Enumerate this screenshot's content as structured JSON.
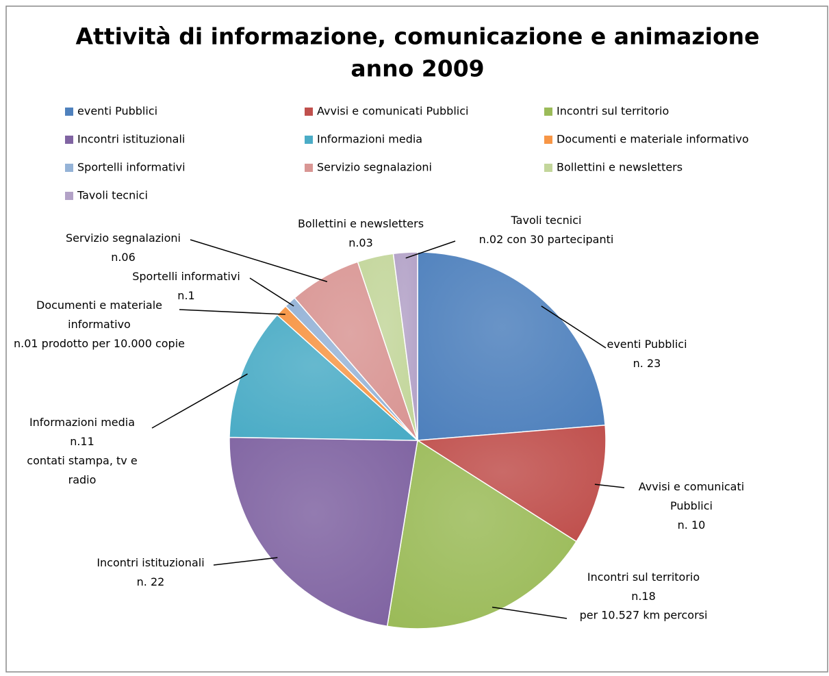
{
  "chart_data": {
    "type": "pie",
    "title": [
      "Attività di informazione, comunicazione e animazione",
      "anno 2009"
    ],
    "categories": [
      "eventi Pubblici",
      "Avvisi e comunicati Pubblici",
      "Incontri sul territorio",
      "Incontri istituzionali",
      "Informazioni media",
      "Documenti e materiale informativo",
      "Sportelli informativi",
      "Servizio segnalazioni",
      "Bollettini e newsletters",
      "Tavoli tecnici"
    ],
    "values": [
      23,
      10,
      18,
      22,
      11,
      1,
      1,
      6,
      3,
      2
    ],
    "value_labels": [
      "n. 23",
      "n. 10",
      "n.18",
      "n. 22",
      "n.11",
      "n.01",
      "n.1",
      "n.06",
      "n.03",
      "n.02"
    ],
    "label_notes": [
      null,
      null,
      "per 10.527 km percorsi",
      null,
      "contati stampa, tv e radio",
      "prodotto per 10.000 copie",
      null,
      null,
      null,
      "con 30 partecipanti"
    ],
    "colors": [
      "#4f81bd",
      "#c0504d",
      "#9bbb59",
      "#8064a2",
      "#4bacc6",
      "#f79646",
      "#95b3d7",
      "#d99694",
      "#c3d69b",
      "#b3a2c7"
    ],
    "legend": "top"
  }
}
